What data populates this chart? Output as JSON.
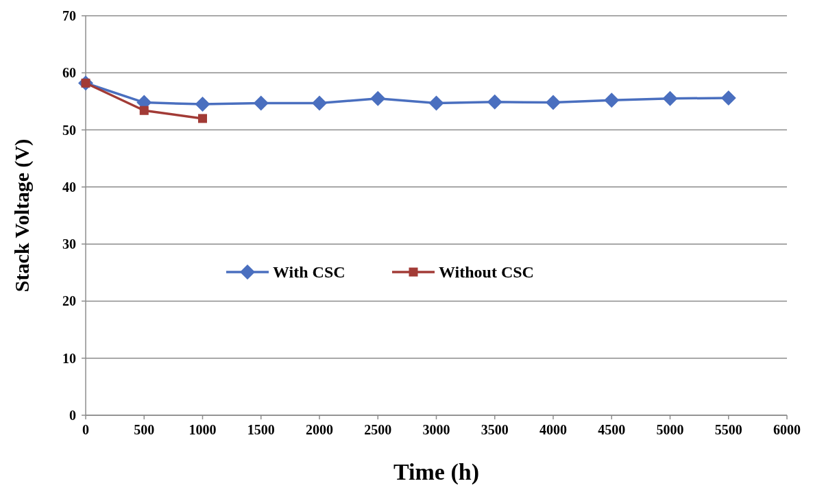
{
  "chart_data": {
    "type": "line",
    "xlabel": "Time (h)",
    "ylabel": "Stack Voltage (V)",
    "xlim": [
      0,
      6000
    ],
    "xticks": [
      0,
      500,
      1000,
      1500,
      2000,
      2500,
      3000,
      3500,
      4000,
      4500,
      5000,
      5500,
      6000
    ],
    "ylim": [
      0,
      70
    ],
    "yticks": [
      0,
      10,
      20,
      30,
      40,
      50,
      60,
      70
    ],
    "grid": "y",
    "legend": "center",
    "series": [
      {
        "name": "With CSC",
        "color": "#4a6fbf",
        "marker": "diamond",
        "x": [
          0,
          500,
          1000,
          1500,
          2000,
          2500,
          3000,
          3500,
          4000,
          4500,
          5000,
          5500
        ],
        "values": [
          58.2,
          54.8,
          54.5,
          54.7,
          54.7,
          55.5,
          54.7,
          54.9,
          54.8,
          55.2,
          55.5,
          55.6
        ]
      },
      {
        "name": "Without CSC",
        "color": "#a23b36",
        "marker": "square",
        "x": [
          0,
          500,
          1000
        ],
        "values": [
          58.2,
          53.4,
          52.0
        ]
      }
    ]
  }
}
